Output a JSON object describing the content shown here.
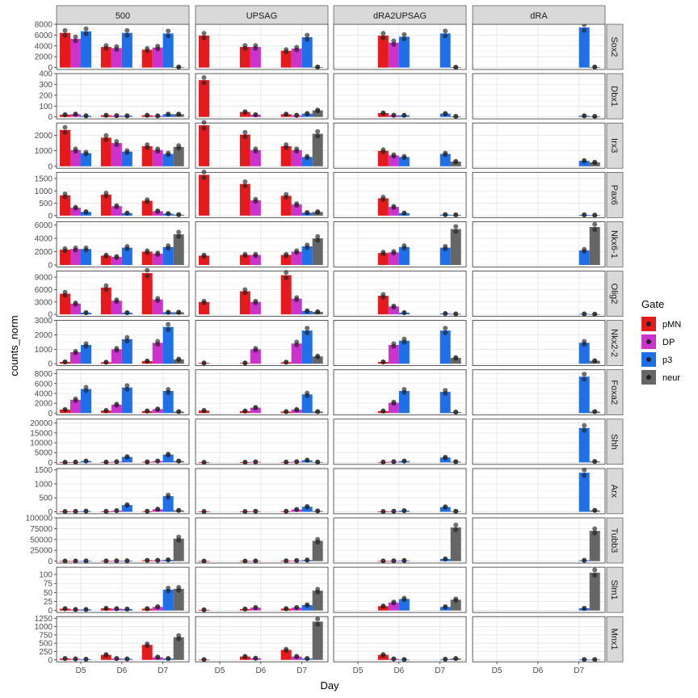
{
  "chart_data": {
    "type": "bar",
    "xlabel": "Day",
    "ylabel": "counts_norm",
    "days": [
      "D5",
      "D6",
      "D7"
    ],
    "conditions": [
      "500",
      "UPSAG",
      "dRA2UPSAG",
      "dRA"
    ],
    "gates": [
      "pMN",
      "DP",
      "p3",
      "neur"
    ],
    "legend": {
      "title": "Gate",
      "position": "right",
      "items": [
        {
          "label": "pMN",
          "color": "#E41A1C"
        },
        {
          "label": "DP",
          "color": "#CC33CC"
        },
        {
          "label": "p3",
          "color": "#1F6FE8"
        },
        {
          "label": "neur",
          "color": "#666666"
        }
      ]
    },
    "grid": true,
    "genes": [
      {
        "name": "Sox2",
        "ymax": 8000,
        "ticks": [
          0,
          2000,
          4000,
          6000,
          8000
        ],
        "panels": {
          "500": {
            "D5": [
              6400,
              5300,
              6700,
              null
            ],
            "D6": [
              3800,
              3600,
              6400,
              null
            ],
            "D7": [
              3300,
              3700,
              6300,
              100
            ]
          },
          "UPSAG": {
            "D5": [
              5900,
              null,
              null,
              null
            ],
            "D6": [
              3800,
              3800,
              null,
              null
            ],
            "D7": [
              3100,
              3500,
              5600,
              100
            ]
          },
          "dRA2UPSAG": {
            "D6": [
              5900,
              4600,
              5700,
              null
            ],
            "D7": [
              null,
              null,
              6300,
              50
            ]
          },
          "dRA": {
            "D7": [
              null,
              null,
              7400,
              100
            ]
          }
        }
      },
      {
        "name": "Dbx1",
        "ymax": 400,
        "ticks": [
          0,
          100,
          200,
          300,
          400
        ],
        "panels": {
          "500": {
            "D5": [
              20,
              25,
              10,
              null
            ],
            "D6": [
              15,
              12,
              10,
              null
            ],
            "D7": [
              15,
              10,
              25,
              25
            ]
          },
          "UPSAG": {
            "D5": [
              340,
              null,
              null,
              null
            ],
            "D6": [
              45,
              20,
              null,
              null
            ],
            "D7": [
              25,
              15,
              30,
              60
            ]
          },
          "dRA2UPSAG": {
            "D6": [
              35,
              15,
              15,
              null
            ],
            "D7": [
              null,
              null,
              30,
              5
            ]
          },
          "dRA": {
            "D7": [
              null,
              null,
              10,
              5
            ]
          }
        }
      },
      {
        "name": "Irx3",
        "ymax": 2800,
        "ticks": [
          0,
          1000,
          2000
        ],
        "panels": {
          "500": {
            "D5": [
              2350,
              1050,
              850,
              null
            ],
            "D6": [
              1850,
              1500,
              950,
              null
            ],
            "D7": [
              1300,
              1050,
              800,
              1250
            ]
          },
          "UPSAG": {
            "D5": [
              2650,
              null,
              null,
              null
            ],
            "D6": [
              2050,
              1050,
              null,
              null
            ],
            "D7": [
              1300,
              1050,
              600,
              2100
            ]
          },
          "dRA2UPSAG": {
            "D6": [
              1000,
              700,
              600,
              null
            ],
            "D7": [
              null,
              null,
              800,
              300
            ]
          },
          "dRA": {
            "D7": [
              null,
              null,
              350,
              250
            ]
          }
        }
      },
      {
        "name": "Pax6",
        "ymax": 1750,
        "ticks": [
          0,
          500,
          1000,
          1500
        ],
        "panels": {
          "500": {
            "D5": [
              820,
              320,
              150,
              null
            ],
            "D6": [
              850,
              380,
              100,
              null
            ],
            "D7": [
              600,
              180,
              80,
              40
            ]
          },
          "UPSAG": {
            "D5": [
              1650,
              null,
              null,
              null
            ],
            "D6": [
              1280,
              620,
              null,
              null
            ],
            "D7": [
              800,
              450,
              120,
              150
            ]
          },
          "dRA2UPSAG": {
            "D6": [
              700,
              350,
              100,
              null
            ],
            "D7": [
              null,
              null,
              40,
              30
            ]
          },
          "dRA": {
            "D7": [
              null,
              null,
              30,
              20
            ]
          }
        }
      },
      {
        "name": "Nkx6-1",
        "ymax": 6500,
        "ticks": [
          0,
          2000,
          4000,
          6000
        ],
        "panels": {
          "500": {
            "D5": [
              2300,
              2400,
              2400,
              null
            ],
            "D6": [
              1400,
              1200,
              2600,
              null
            ],
            "D7": [
              2000,
              1700,
              2700,
              4600
            ]
          },
          "UPSAG": {
            "D5": [
              1400,
              null,
              null,
              null
            ],
            "D6": [
              1500,
              1500,
              null,
              null
            ],
            "D7": [
              1500,
              2000,
              2800,
              4000
            ]
          },
          "dRA2UPSAG": {
            "D6": [
              1800,
              1900,
              2700,
              null
            ],
            "D7": [
              null,
              null,
              2600,
              5400
            ]
          },
          "dRA": {
            "D7": [
              null,
              null,
              2200,
              5700
            ]
          }
        }
      },
      {
        "name": "Olig2",
        "ymax": 10500,
        "ticks": [
          0,
          3000,
          6000,
          9000
        ],
        "panels": {
          "500": {
            "D5": [
              5000,
              2600,
              400,
              null
            ],
            "D6": [
              6500,
              3300,
              400,
              null
            ],
            "D7": [
              10000,
              3600,
              500,
              500
            ]
          },
          "UPSAG": {
            "D5": [
              3000,
              null,
              null,
              null
            ],
            "D6": [
              5600,
              3000,
              null,
              null
            ],
            "D7": [
              9500,
              3800,
              800,
              600
            ]
          },
          "dRA2UPSAG": {
            "D6": [
              4500,
              1900,
              400,
              null
            ],
            "D7": [
              null,
              null,
              200,
              100
            ]
          },
          "dRA": {
            "D7": [
              null,
              null,
              100,
              50
            ]
          }
        }
      },
      {
        "name": "Nkx2-2",
        "ymax": 3000,
        "ticks": [
          0,
          1000,
          2000,
          3000
        ],
        "panels": {
          "500": {
            "D5": [
              120,
              800,
              1300,
              null
            ],
            "D6": [
              100,
              1000,
              1700,
              null
            ],
            "D7": [
              180,
              1450,
              2550,
              300
            ]
          },
          "UPSAG": {
            "D5": [
              50,
              null,
              null,
              null
            ],
            "D6": [
              50,
              1000,
              null,
              null
            ],
            "D7": [
              100,
              1400,
              2300,
              500
            ]
          },
          "dRA2UPSAG": {
            "D6": [
              120,
              1300,
              1600,
              null
            ],
            "D7": [
              null,
              null,
              2300,
              400
            ]
          },
          "dRA": {
            "D7": [
              null,
              null,
              1450,
              200
            ]
          }
        }
      },
      {
        "name": "Foxa2",
        "ymax": 8800,
        "ticks": [
          0,
          2000,
          4000,
          6000,
          8000
        ],
        "panels": {
          "500": {
            "D5": [
              700,
              2700,
              4900,
              null
            ],
            "D6": [
              500,
              1700,
              5200,
              null
            ],
            "D7": [
              400,
              800,
              4500,
              300
            ]
          },
          "UPSAG": {
            "D5": [
              500,
              null,
              null,
              null
            ],
            "D6": [
              400,
              1100,
              null,
              null
            ],
            "D7": [
              300,
              700,
              3800,
              300
            ]
          },
          "dRA2UPSAG": {
            "D6": [
              400,
              2100,
              4500,
              null
            ],
            "D7": [
              null,
              null,
              4300,
              200
            ]
          },
          "dRA": {
            "D7": [
              null,
              null,
              7400,
              300
            ]
          }
        }
      },
      {
        "name": "Shh",
        "ymax": 22000,
        "ticks": [
          0,
          5000,
          10000,
          15000,
          20000
        ],
        "panels": {
          "500": {
            "D5": [
              100,
              200,
              700,
              null
            ],
            "D6": [
              200,
              400,
              2800,
              null
            ],
            "D7": [
              300,
              700,
              4000,
              700
            ]
          },
          "UPSAG": {
            "D5": [
              50,
              null,
              null,
              null
            ],
            "D6": [
              100,
              300,
              null,
              null
            ],
            "D7": [
              200,
              400,
              1100,
              200
            ]
          },
          "dRA2UPSAG": {
            "D6": [
              200,
              400,
              700,
              null
            ],
            "D7": [
              null,
              null,
              2500,
              400
            ]
          },
          "dRA": {
            "D7": [
              null,
              null,
              17500,
              500
            ]
          }
        }
      },
      {
        "name": "Arx",
        "ymax": 1550,
        "ticks": [
          0,
          500,
          1000,
          1500
        ],
        "panels": {
          "500": {
            "D5": [
              10,
              15,
              25,
              null
            ],
            "D6": [
              15,
              40,
              240,
              null
            ],
            "D7": [
              20,
              90,
              560,
              50
            ]
          },
          "UPSAG": {
            "D5": [
              10,
              null,
              null,
              null
            ],
            "D6": [
              10,
              20,
              null,
              null
            ],
            "D7": [
              20,
              80,
              180,
              30
            ]
          },
          "dRA2UPSAG": {
            "D6": [
              10,
              20,
              40,
              null
            ],
            "D7": [
              null,
              null,
              170,
              20
            ]
          },
          "dRA": {
            "D7": [
              null,
              null,
              1400,
              50
            ]
          }
        }
      },
      {
        "name": "Tubb3",
        "ymax": 100000,
        "ticks": [
          0,
          25000,
          50000,
          75000,
          100000
        ],
        "panels": {
          "500": {
            "D5": [
              300,
              400,
              500,
              null
            ],
            "D6": [
              500,
              700,
              900,
              null
            ],
            "D7": [
              2000,
              2000,
              3000,
              52000
            ]
          },
          "UPSAG": {
            "D5": [
              200,
              null,
              null,
              null
            ],
            "D6": [
              300,
              500,
              null,
              null
            ],
            "D7": [
              800,
              1500,
              2500,
              47000
            ]
          },
          "dRA2UPSAG": {
            "D6": [
              400,
              800,
              1500,
              null
            ],
            "D7": [
              null,
              null,
              5000,
              78000
            ]
          },
          "dRA": {
            "D7": [
              null,
              null,
              2000,
              70000
            ]
          }
        }
      },
      {
        "name": "Slm1",
        "ymax": 120,
        "ticks": [
          0,
          25,
          50,
          75,
          100
        ],
        "panels": {
          "500": {
            "D5": [
              5,
              3,
              3,
              null
            ],
            "D6": [
              6,
              5,
              4,
              null
            ],
            "D7": [
              5,
              10,
              58,
              60
            ]
          },
          "UPSAG": {
            "D5": [
              2,
              null,
              null,
              null
            ],
            "D6": [
              4,
              8,
              null,
              null
            ],
            "D7": [
              5,
              8,
              15,
              55
            ]
          },
          "dRA2UPSAG": {
            "D6": [
              12,
              22,
              32,
              null
            ],
            "D7": [
              null,
              null,
              10,
              30
            ]
          },
          "dRA": {
            "D7": [
              null,
              null,
              6,
              105
            ]
          }
        }
      },
      {
        "name": "Mnx1",
        "ymax": 1300,
        "ticks": [
          0,
          250,
          500,
          750,
          1000,
          1250
        ],
        "panels": {
          "500": {
            "D5": [
              40,
              30,
              20,
              null
            ],
            "D6": [
              150,
              40,
              30,
              null
            ],
            "D7": [
              450,
              80,
              40,
              680
            ]
          },
          "UPSAG": {
            "D5": [
              10,
              null,
              null,
              null
            ],
            "D6": [
              100,
              50,
              null,
              null
            ],
            "D7": [
              300,
              100,
              40,
              1150
            ]
          },
          "dRA2UPSAG": {
            "D6": [
              150,
              30,
              10,
              null
            ],
            "D7": [
              null,
              null,
              20,
              40
            ]
          },
          "dRA": {
            "D7": [
              null,
              null,
              10,
              10
            ]
          }
        }
      }
    ]
  }
}
